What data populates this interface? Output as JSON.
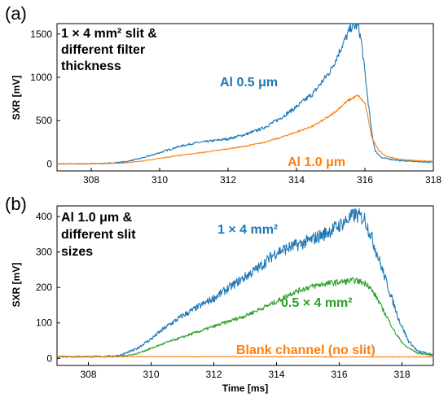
{
  "chart_data": [
    {
      "panel": "(a)",
      "type": "line",
      "xlim": [
        307,
        318
      ],
      "ylim": [
        -80,
        1620
      ],
      "x_ticks": [
        "308",
        "310",
        "312",
        "314",
        "316",
        "318"
      ],
      "y_ticks": [
        "0",
        "500",
        "1000",
        "1500"
      ],
      "ylabel": "SXR [mV]",
      "xlabel": "",
      "grid": false,
      "annotation": [
        "1 × 4 mm² slit &",
        "different filter",
        "thickness"
      ],
      "series": [
        {
          "name": "Al 0.5 μm",
          "color": "#1f77b4",
          "noise": 22,
          "points": [
            [
              307.0,
              0
            ],
            [
              308.0,
              3
            ],
            [
              308.5,
              8
            ],
            [
              309.0,
              25
            ],
            [
              309.5,
              70
            ],
            [
              310.0,
              130
            ],
            [
              310.5,
              195
            ],
            [
              311.0,
              240
            ],
            [
              311.5,
              265
            ],
            [
              312.0,
              290
            ],
            [
              312.5,
              340
            ],
            [
              313.0,
              410
            ],
            [
              313.5,
              520
            ],
            [
              314.0,
              660
            ],
            [
              314.5,
              820
            ],
            [
              315.0,
              1080
            ],
            [
              315.2,
              1250
            ],
            [
              315.4,
              1420
            ],
            [
              315.6,
              1580
            ],
            [
              315.8,
              1595
            ],
            [
              315.9,
              1410
            ],
            [
              316.0,
              1050
            ],
            [
              316.1,
              700
            ],
            [
              316.2,
              360
            ],
            [
              316.3,
              150
            ],
            [
              316.5,
              70
            ],
            [
              317.0,
              40
            ],
            [
              317.5,
              28
            ],
            [
              318.0,
              20
            ]
          ]
        },
        {
          "name": "Al 1.0 μm",
          "color": "#ff7f0e",
          "noise": 12,
          "points": [
            [
              307.0,
              0
            ],
            [
              308.0,
              2
            ],
            [
              309.0,
              12
            ],
            [
              309.5,
              35
            ],
            [
              310.0,
              65
            ],
            [
              310.5,
              95
            ],
            [
              311.0,
              120
            ],
            [
              311.5,
              145
            ],
            [
              312.0,
              175
            ],
            [
              312.5,
              205
            ],
            [
              313.0,
              245
            ],
            [
              313.5,
              300
            ],
            [
              314.0,
              370
            ],
            [
              314.5,
              440
            ],
            [
              315.0,
              560
            ],
            [
              315.5,
              730
            ],
            [
              315.8,
              790
            ],
            [
              316.0,
              700
            ],
            [
              316.1,
              520
            ],
            [
              316.2,
              310
            ],
            [
              316.4,
              160
            ],
            [
              316.6,
              90
            ],
            [
              317.0,
              55
            ],
            [
              317.5,
              38
            ],
            [
              318.0,
              30
            ]
          ]
        }
      ]
    },
    {
      "panel": "(b)",
      "type": "line",
      "xlim": [
        307,
        319
      ],
      "ylim": [
        -20,
        430
      ],
      "x_ticks": [
        "308",
        "310",
        "312",
        "314",
        "316",
        "318"
      ],
      "y_ticks": [
        "0",
        "100",
        "200",
        "300",
        "400"
      ],
      "ylabel": "SXR [mV]",
      "xlabel": "Time [ms]",
      "grid": false,
      "annotation": [
        "Al 1.0 μm &",
        "different slit",
        "sizes"
      ],
      "series": [
        {
          "name": "1 × 4 mm²",
          "color": "#1f77b4",
          "noise": 9,
          "points": [
            [
              307.0,
              5
            ],
            [
              308.5,
              5
            ],
            [
              309.0,
              8
            ],
            [
              309.5,
              25
            ],
            [
              310.0,
              55
            ],
            [
              310.5,
              90
            ],
            [
              311.0,
              120
            ],
            [
              311.5,
              145
            ],
            [
              312.0,
              170
            ],
            [
              312.5,
              200
            ],
            [
              313.0,
              230
            ],
            [
              313.5,
              260
            ],
            [
              314.0,
              300
            ],
            [
              314.5,
              315
            ],
            [
              315.0,
              330
            ],
            [
              315.5,
              350
            ],
            [
              316.0,
              375
            ],
            [
              316.5,
              405
            ],
            [
              316.8,
              395
            ],
            [
              317.0,
              350
            ],
            [
              317.3,
              270
            ],
            [
              317.6,
              190
            ],
            [
              317.9,
              110
            ],
            [
              318.2,
              50
            ],
            [
              318.5,
              20
            ],
            [
              319.0,
              10
            ]
          ]
        },
        {
          "name": "0.5 × 4 mm²",
          "color": "#2ca02c",
          "noise": 6,
          "points": [
            [
              307.0,
              5
            ],
            [
              309.0,
              5
            ],
            [
              309.5,
              12
            ],
            [
              310.0,
              28
            ],
            [
              310.5,
              45
            ],
            [
              311.0,
              60
            ],
            [
              311.5,
              75
            ],
            [
              312.0,
              90
            ],
            [
              312.5,
              105
            ],
            [
              313.0,
              120
            ],
            [
              313.5,
              140
            ],
            [
              314.0,
              160
            ],
            [
              314.5,
              185
            ],
            [
              315.0,
              200
            ],
            [
              315.5,
              210
            ],
            [
              316.0,
              215
            ],
            [
              316.5,
              220
            ],
            [
              316.9,
              210
            ],
            [
              317.2,
              170
            ],
            [
              317.5,
              120
            ],
            [
              317.8,
              70
            ],
            [
              318.1,
              35
            ],
            [
              318.5,
              15
            ],
            [
              319.0,
              8
            ]
          ]
        },
        {
          "name": "Blank channel (no slit)",
          "color": "#ff7f0e",
          "noise": 3,
          "points": [
            [
              307.0,
              5
            ],
            [
              310.0,
              5
            ],
            [
              313.0,
              5
            ],
            [
              316.0,
              4
            ],
            [
              319.0,
              4
            ]
          ]
        }
      ]
    }
  ]
}
